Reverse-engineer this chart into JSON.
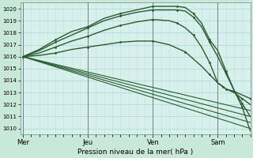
{
  "title": "Pression niveau de la mer( hPa )",
  "bg_outer": "#c8e8d8",
  "bg_plot": "#d8f0ec",
  "grid_color_major": "#a8d8cc",
  "grid_color_minor": "#c0e4dc",
  "line_color": "#2a5c30",
  "ylim": [
    1009.5,
    1020.5
  ],
  "yticks": [
    1010,
    1011,
    1012,
    1013,
    1014,
    1015,
    1016,
    1017,
    1018,
    1019,
    1020
  ],
  "day_labels": [
    "Mer",
    "Jeu",
    "Ven",
    "Sam"
  ],
  "day_positions": [
    0,
    48,
    96,
    144
  ],
  "xlim": [
    -2,
    168
  ],
  "series": [
    {
      "x": [
        0,
        168
      ],
      "y": [
        1016.0,
        1010.0
      ],
      "lw": 0.8,
      "marker": null
    },
    {
      "x": [
        0,
        168
      ],
      "y": [
        1016.0,
        1010.5
      ],
      "lw": 0.8,
      "marker": null
    },
    {
      "x": [
        0,
        168
      ],
      "y": [
        1016.0,
        1011.0
      ],
      "lw": 0.8,
      "marker": null
    },
    {
      "x": [
        0,
        168
      ],
      "y": [
        1016.0,
        1011.5
      ],
      "lw": 0.8,
      "marker": null
    },
    {
      "x": [
        0,
        12,
        24,
        36,
        48,
        60,
        72,
        84,
        96,
        108,
        114,
        120,
        126,
        132,
        138,
        144,
        150,
        156,
        162,
        168
      ],
      "y": [
        1016.0,
        1016.6,
        1017.4,
        1018.1,
        1018.5,
        1019.2,
        1019.6,
        1019.9,
        1020.2,
        1020.2,
        1020.2,
        1020.1,
        1019.6,
        1018.8,
        1017.4,
        1016.5,
        1014.8,
        1013.2,
        1011.8,
        1009.8
      ],
      "lw": 1.0,
      "marker": "s"
    },
    {
      "x": [
        0,
        12,
        24,
        36,
        48,
        60,
        72,
        84,
        96,
        108,
        114,
        120,
        126,
        132,
        138,
        144,
        150,
        156,
        162,
        168
      ],
      "y": [
        1016.0,
        1016.5,
        1017.2,
        1017.8,
        1018.4,
        1019.0,
        1019.4,
        1019.7,
        1019.9,
        1019.9,
        1019.9,
        1019.8,
        1019.3,
        1018.5,
        1017.2,
        1016.0,
        1014.6,
        1013.2,
        1012.1,
        1011.0
      ],
      "lw": 1.0,
      "marker": "s"
    },
    {
      "x": [
        0,
        12,
        24,
        36,
        48,
        60,
        72,
        84,
        96,
        108,
        114,
        120,
        126,
        132,
        138,
        144,
        148,
        150,
        156,
        162,
        168
      ],
      "y": [
        1016.0,
        1016.3,
        1016.8,
        1017.3,
        1017.7,
        1018.2,
        1018.6,
        1018.9,
        1019.1,
        1019.0,
        1018.8,
        1018.4,
        1017.8,
        1016.8,
        1015.5,
        1013.8,
        1013.5,
        1013.3,
        1013.1,
        1012.8,
        1012.5
      ],
      "lw": 1.0,
      "marker": "s"
    },
    {
      "x": [
        0,
        12,
        24,
        36,
        48,
        60,
        72,
        84,
        96,
        108,
        120,
        132,
        138,
        144,
        150,
        156,
        162,
        168
      ],
      "y": [
        1016.0,
        1016.1,
        1016.3,
        1016.6,
        1016.8,
        1017.0,
        1017.2,
        1017.3,
        1017.3,
        1017.0,
        1016.4,
        1015.2,
        1014.5,
        1013.8,
        1013.3,
        1013.0,
        1012.5,
        1012.0
      ],
      "lw": 1.0,
      "marker": "s"
    }
  ],
  "vline_positions": [
    0,
    48,
    96,
    144
  ],
  "vline_color": "#607870"
}
